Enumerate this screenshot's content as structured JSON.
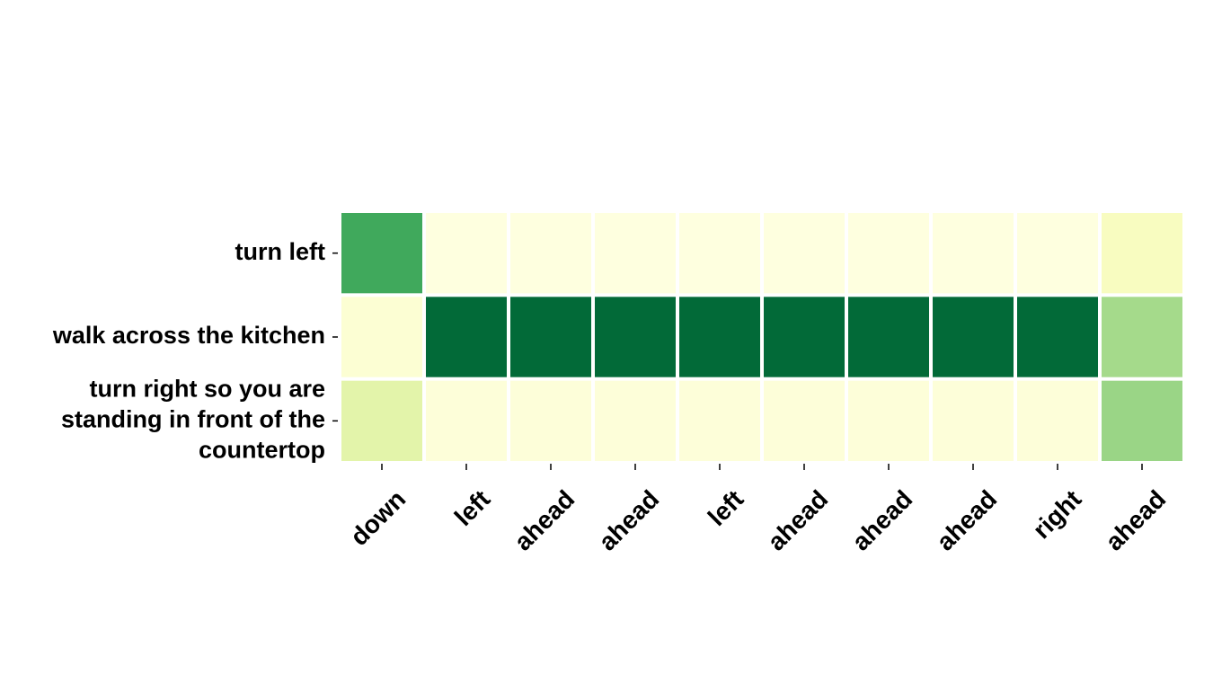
{
  "chart_data": {
    "type": "heatmap",
    "title": "",
    "xlabel": "",
    "ylabel": "",
    "x": [
      "down",
      "left",
      "ahead",
      "ahead",
      "left",
      "ahead",
      "ahead",
      "ahead",
      "right",
      "ahead"
    ],
    "y": [
      "turn left",
      "walk across the kitchen",
      "turn right so you are standing in front of the countertop"
    ],
    "y_lines": [
      [
        "turn left"
      ],
      [
        "walk across the kitchen"
      ],
      [
        "turn right so you are",
        "standing in front of the",
        "countertop"
      ]
    ],
    "values": [
      [
        0.72,
        0.02,
        0.02,
        0.02,
        0.02,
        0.02,
        0.02,
        0.02,
        0.02,
        0.12
      ],
      [
        0.06,
        0.99,
        0.99,
        0.99,
        0.99,
        0.99,
        0.99,
        0.99,
        0.99,
        0.45
      ],
      [
        0.24,
        0.04,
        0.04,
        0.04,
        0.04,
        0.04,
        0.04,
        0.04,
        0.04,
        0.48
      ]
    ],
    "colormap": [
      "#ffffe5",
      "#f7fcb9",
      "#d9f0a3",
      "#addd8e",
      "#78c679",
      "#41ab5d",
      "#238443",
      "#006837"
    ],
    "vmin": 0,
    "vmax": 1,
    "grid": false,
    "legend": "none"
  }
}
